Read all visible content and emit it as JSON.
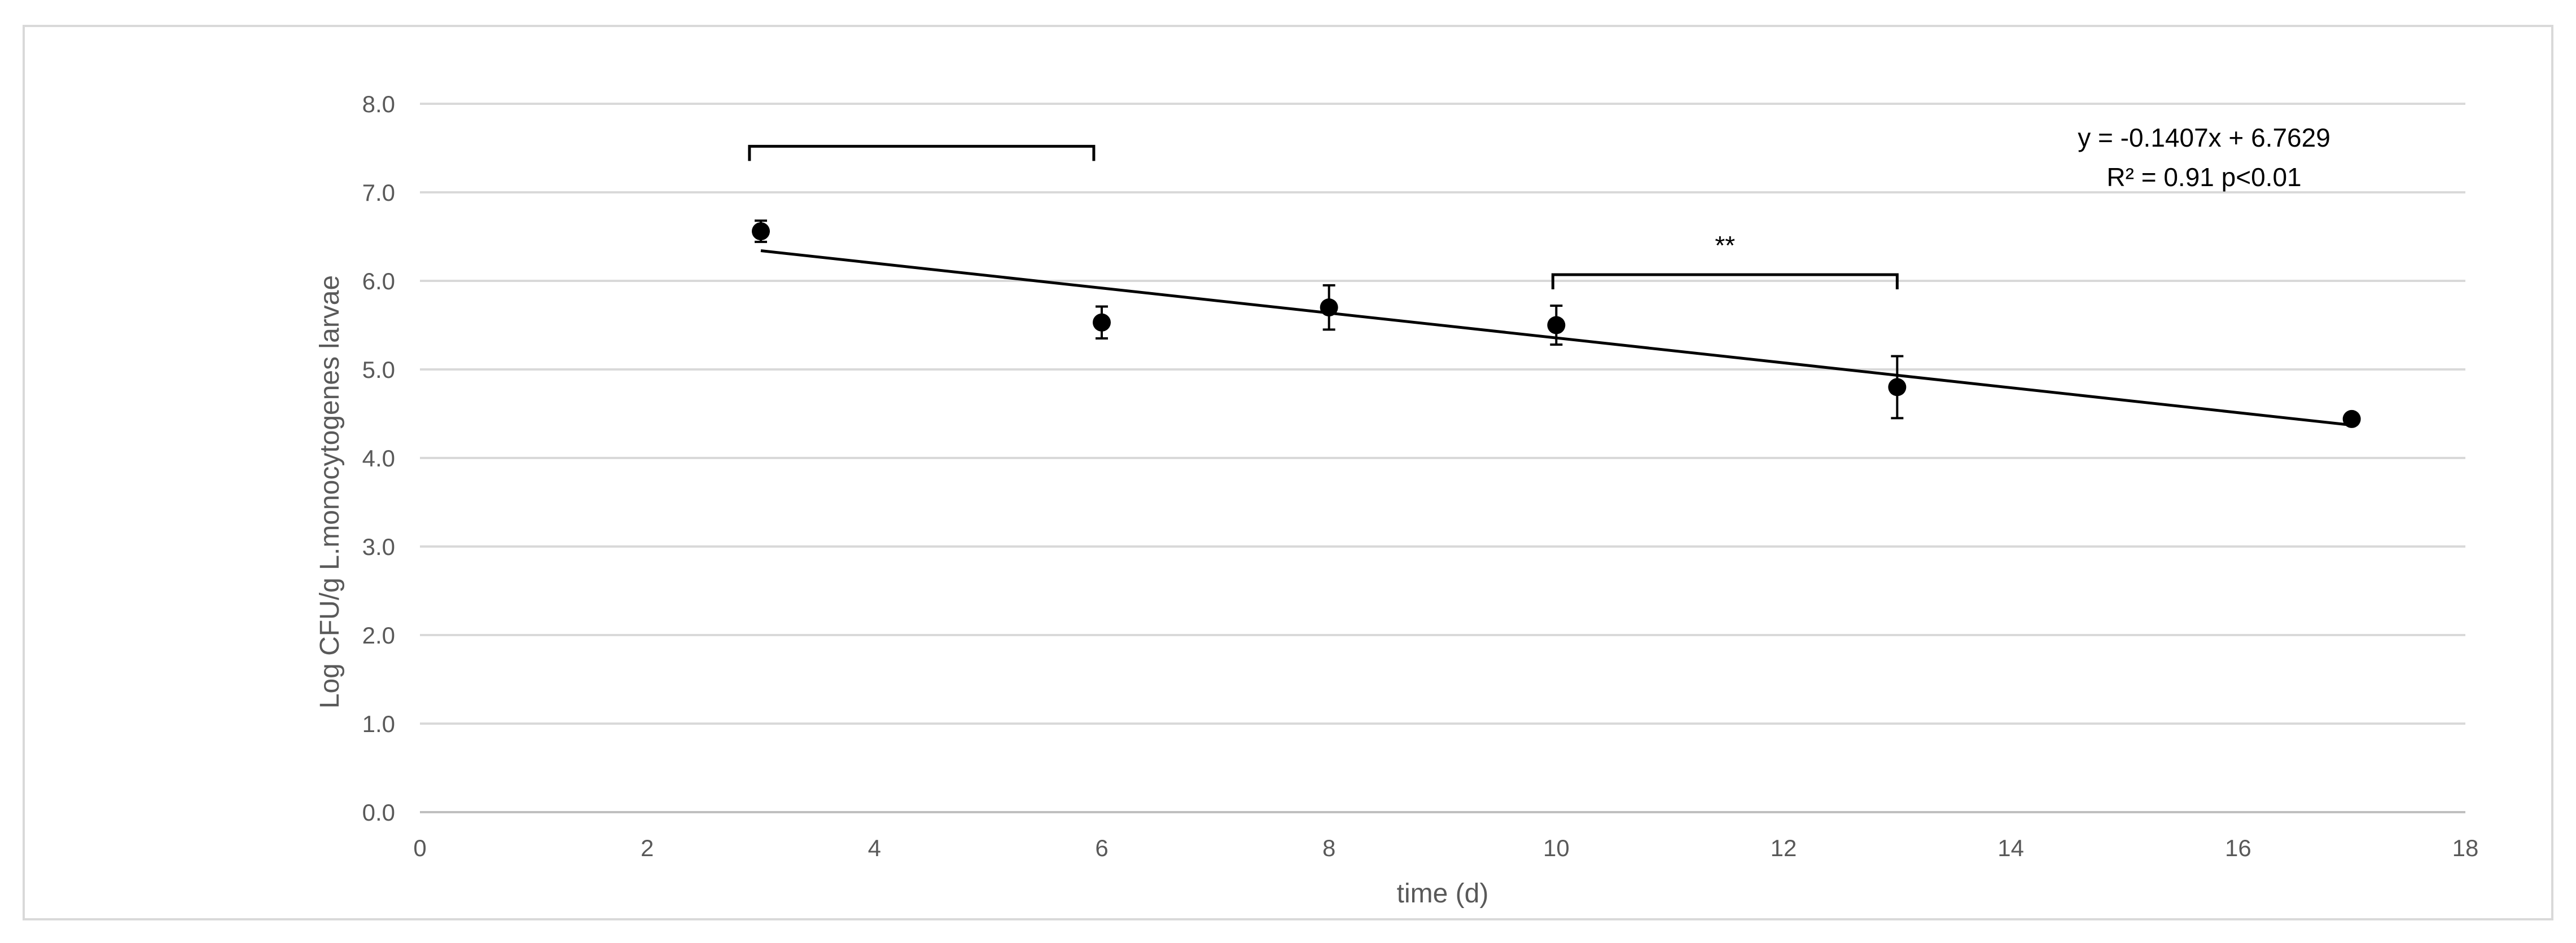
{
  "chart_data": {
    "type": "scatter",
    "xlabel": "time (d)",
    "ylabel": "Log CFU/g L.monocytogenes larvae",
    "xlim": [
      0,
      18
    ],
    "ylim": [
      0,
      8
    ],
    "x_ticks": [
      "0",
      "2",
      "4",
      "6",
      "8",
      "10",
      "12",
      "14",
      "16",
      "18"
    ],
    "y_ticks": [
      "0.0",
      "1.0",
      "2.0",
      "3.0",
      "4.0",
      "5.0",
      "6.0",
      "7.0",
      "8.0"
    ],
    "grid": "horizontal",
    "series": [
      {
        "x": [
          3,
          6,
          8,
          10,
          13,
          17
        ],
        "y": [
          6.56,
          5.53,
          5.7,
          5.5,
          4.8,
          4.44
        ],
        "error": [
          0.12,
          0.18,
          0.25,
          0.22,
          0.35,
          0.05
        ]
      }
    ],
    "trendline": {
      "slope": -0.1407,
      "intercept": 6.7629,
      "x_range": [
        3,
        17
      ],
      "equation": "y = -0.1407x + 6.7629",
      "stats": "R² = 0.91 p<0.01"
    },
    "brackets": [
      {
        "x_start": 2.9,
        "x_end": 5.93,
        "y": 7.52,
        "label": ""
      },
      {
        "x_start": 9.97,
        "x_end": 13.0,
        "y": 6.07,
        "label": "**"
      }
    ],
    "colors": {
      "marker": "#000000",
      "grid": "#d9d9d9",
      "axis_text": "#595959"
    }
  }
}
